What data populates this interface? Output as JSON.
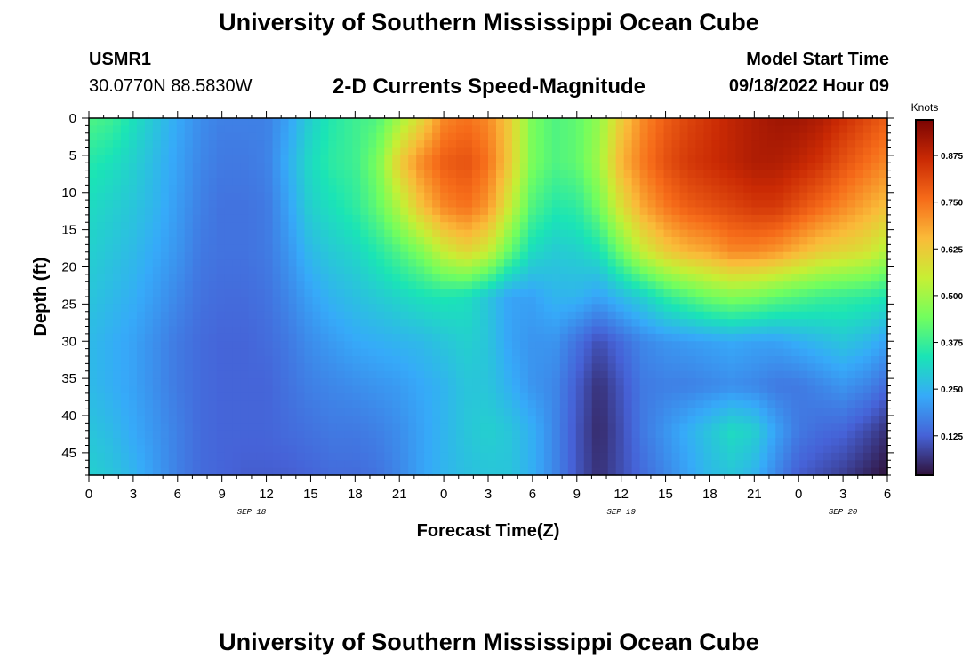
{
  "page": {
    "title": "University of Southern Mississippi Ocean Cube",
    "title_bottom": "University of Southern Mississippi Ocean Cube",
    "station_id": "USMR1",
    "coordinates": "30.0770N  88.5830W",
    "subtitle": "2-D Currents Speed-Magnitude",
    "model_start_label": "Model Start Time",
    "model_start_value": "09/18/2022 Hour 09"
  },
  "chart_data": {
    "type": "heatmap",
    "title": "2-D Currents Speed-Magnitude",
    "xlabel": "Forecast Time(Z)",
    "ylabel": "Depth (ft)",
    "x_hours": [
      0,
      3,
      6,
      9,
      12,
      15,
      18,
      21,
      24,
      27,
      30,
      33,
      36,
      39,
      42,
      45,
      48,
      51,
      54
    ],
    "xtick_labels": [
      "0",
      "3",
      "6",
      "9",
      "12",
      "15",
      "18",
      "21",
      "0",
      "3",
      "6",
      "9",
      "12",
      "15",
      "18",
      "21",
      "0",
      "3",
      "6"
    ],
    "date_labels": [
      {
        "text": "SEP 18",
        "hour": 11
      },
      {
        "text": "SEP 19",
        "hour": 36
      },
      {
        "text": "SEP 20",
        "hour": 51
      }
    ],
    "xlim": [
      0,
      54
    ],
    "ylim": [
      0,
      48
    ],
    "ytick_labels": [
      "0",
      "5",
      "10",
      "15",
      "20",
      "25",
      "30",
      "35",
      "40",
      "45"
    ],
    "y_values": [
      0,
      5,
      10,
      15,
      20,
      25,
      30,
      35,
      40,
      45
    ],
    "depth_ft": [
      0,
      6,
      12,
      18,
      24,
      30,
      36,
      42,
      48
    ],
    "speed_knots": [
      [
        0.4,
        0.38,
        0.33,
        0.28,
        0.23,
        0.19,
        0.17,
        0.17,
        0.17,
        0.22,
        0.3,
        0.35,
        0.38,
        0.4,
        0.5,
        0.6,
        0.72,
        0.75,
        0.72,
        0.62,
        0.45,
        0.4,
        0.42,
        0.48,
        0.62,
        0.72,
        0.78,
        0.82,
        0.85,
        0.88,
        0.9,
        0.92,
        0.92,
        0.9,
        0.86,
        0.82,
        0.78
      ],
      [
        0.35,
        0.33,
        0.3,
        0.26,
        0.22,
        0.18,
        0.16,
        0.16,
        0.17,
        0.24,
        0.32,
        0.36,
        0.38,
        0.45,
        0.62,
        0.72,
        0.78,
        0.8,
        0.75,
        0.62,
        0.45,
        0.4,
        0.42,
        0.5,
        0.66,
        0.74,
        0.8,
        0.84,
        0.86,
        0.88,
        0.9,
        0.9,
        0.88,
        0.85,
        0.8,
        0.76,
        0.72
      ],
      [
        0.32,
        0.3,
        0.28,
        0.25,
        0.21,
        0.17,
        0.15,
        0.15,
        0.16,
        0.22,
        0.3,
        0.33,
        0.36,
        0.42,
        0.52,
        0.64,
        0.72,
        0.75,
        0.7,
        0.55,
        0.4,
        0.35,
        0.36,
        0.44,
        0.58,
        0.68,
        0.74,
        0.78,
        0.8,
        0.82,
        0.84,
        0.84,
        0.8,
        0.76,
        0.72,
        0.68,
        0.64
      ],
      [
        0.3,
        0.28,
        0.26,
        0.23,
        0.2,
        0.16,
        0.15,
        0.15,
        0.16,
        0.2,
        0.26,
        0.29,
        0.31,
        0.35,
        0.4,
        0.46,
        0.55,
        0.6,
        0.55,
        0.42,
        0.32,
        0.29,
        0.3,
        0.33,
        0.44,
        0.55,
        0.62,
        0.66,
        0.68,
        0.72,
        0.72,
        0.7,
        0.66,
        0.62,
        0.6,
        0.58,
        0.52
      ],
      [
        0.28,
        0.26,
        0.24,
        0.21,
        0.18,
        0.15,
        0.14,
        0.14,
        0.15,
        0.18,
        0.22,
        0.25,
        0.27,
        0.29,
        0.31,
        0.33,
        0.34,
        0.33,
        0.28,
        0.22,
        0.22,
        0.25,
        0.25,
        0.22,
        0.26,
        0.3,
        0.36,
        0.4,
        0.44,
        0.46,
        0.45,
        0.42,
        0.4,
        0.38,
        0.37,
        0.36,
        0.34
      ],
      [
        0.26,
        0.24,
        0.22,
        0.19,
        0.16,
        0.14,
        0.13,
        0.13,
        0.14,
        0.16,
        0.19,
        0.21,
        0.23,
        0.24,
        0.25,
        0.26,
        0.28,
        0.3,
        0.28,
        0.22,
        0.2,
        0.2,
        0.15,
        0.1,
        0.14,
        0.18,
        0.2,
        0.21,
        0.22,
        0.23,
        0.22,
        0.22,
        0.24,
        0.26,
        0.28,
        0.26,
        0.22
      ],
      [
        0.26,
        0.24,
        0.22,
        0.19,
        0.16,
        0.14,
        0.13,
        0.13,
        0.13,
        0.15,
        0.17,
        0.18,
        0.19,
        0.2,
        0.21,
        0.23,
        0.25,
        0.28,
        0.28,
        0.24,
        0.2,
        0.18,
        0.12,
        0.06,
        0.11,
        0.16,
        0.17,
        0.17,
        0.18,
        0.19,
        0.18,
        0.16,
        0.16,
        0.18,
        0.2,
        0.18,
        0.14
      ],
      [
        0.28,
        0.26,
        0.23,
        0.2,
        0.17,
        0.14,
        0.13,
        0.13,
        0.13,
        0.14,
        0.15,
        0.16,
        0.16,
        0.17,
        0.19,
        0.22,
        0.25,
        0.28,
        0.3,
        0.28,
        0.24,
        0.18,
        0.11,
        0.05,
        0.1,
        0.16,
        0.2,
        0.24,
        0.28,
        0.32,
        0.3,
        0.22,
        0.16,
        0.14,
        0.13,
        0.1,
        0.06
      ],
      [
        0.3,
        0.28,
        0.25,
        0.21,
        0.17,
        0.14,
        0.13,
        0.12,
        0.12,
        0.12,
        0.13,
        0.14,
        0.14,
        0.15,
        0.18,
        0.22,
        0.25,
        0.27,
        0.28,
        0.28,
        0.24,
        0.18,
        0.11,
        0.06,
        0.1,
        0.14,
        0.18,
        0.22,
        0.26,
        0.28,
        0.25,
        0.18,
        0.12,
        0.1,
        0.08,
        0.05,
        0.02
      ]
    ],
    "colorbar": {
      "label": "Knots",
      "ticks": [
        0.125,
        0.25,
        0.375,
        0.5,
        0.625,
        0.75,
        0.875
      ],
      "tick_labels": [
        "0.125",
        "0.250",
        "0.375",
        "0.500",
        "0.625",
        "0.750",
        "0.875"
      ],
      "range": [
        0.02,
        0.97
      ],
      "colormap": [
        "#30123b",
        "#4662d7",
        "#36aaf9",
        "#1ae4b6",
        "#72fe5e",
        "#c7ef34",
        "#fabb39",
        "#f66b19",
        "#ca2a04",
        "#7a0403"
      ]
    }
  }
}
